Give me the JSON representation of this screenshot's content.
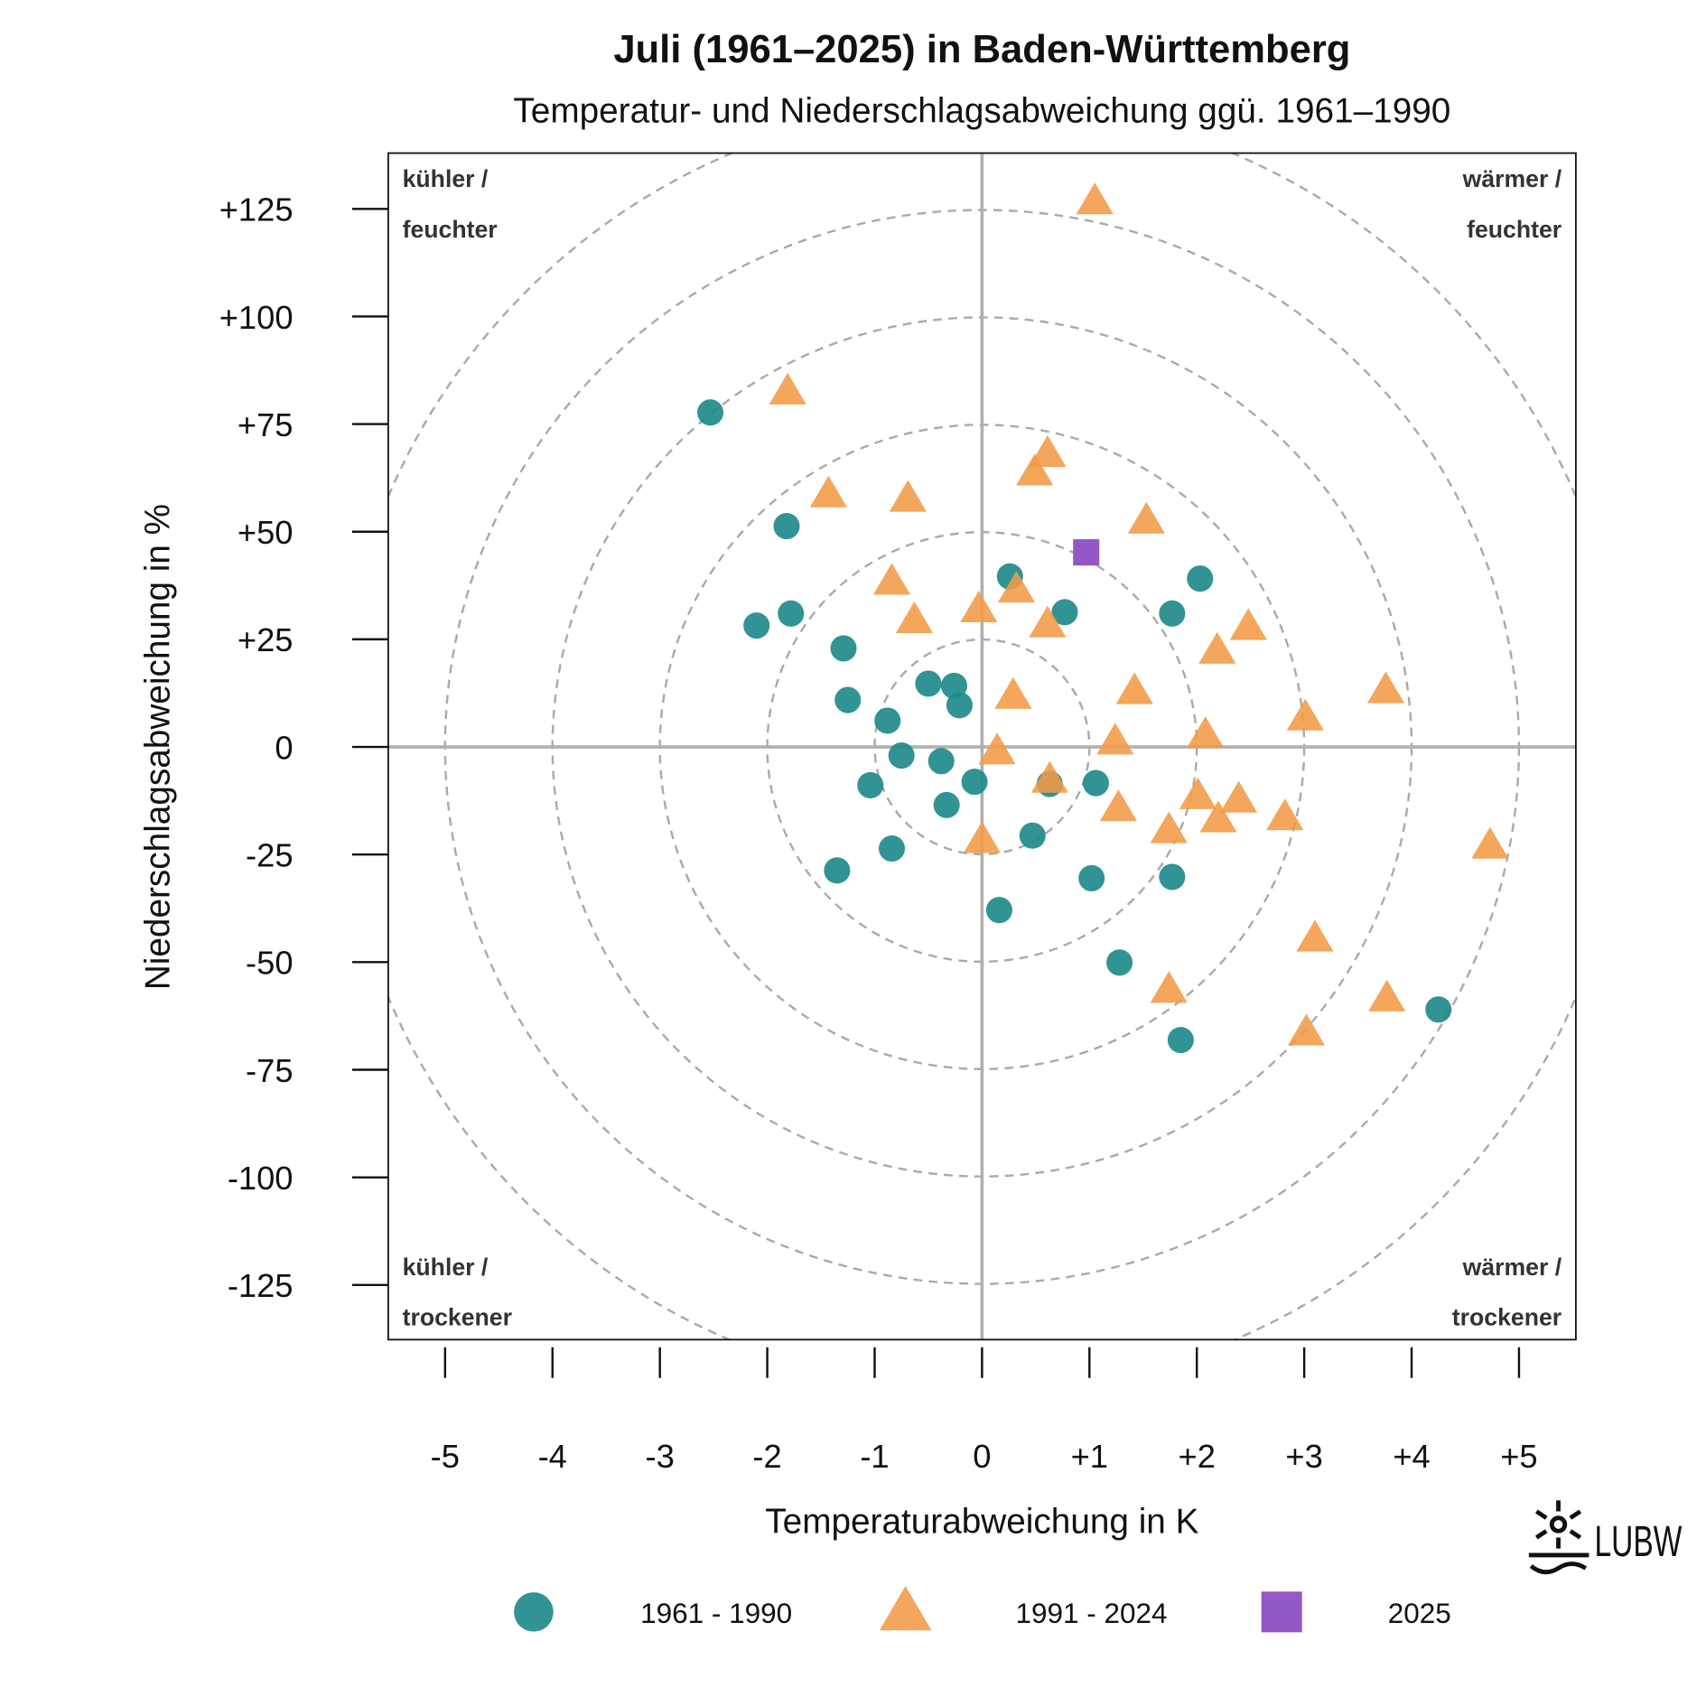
{
  "chart_data": {
    "type": "scatter",
    "title": "Juli (1961–2025) in Baden-Württemberg",
    "subtitle": "Temperatur- und Niederschlagsabweichung ggü. 1961–1990",
    "xlabel": "Temperaturabweichung in K",
    "ylabel": "Niederschlagsabweichung in %",
    "xlim": [
      -5.5,
      5.5
    ],
    "ylim": [
      -138,
      138
    ],
    "x_ticks": [
      -5,
      -4,
      -3,
      -2,
      -1,
      0,
      1,
      2,
      3,
      4,
      5
    ],
    "x_tick_labels": [
      "-5",
      "-4",
      "-3",
      "-2",
      "-1",
      "0",
      "+1",
      "+2",
      "+3",
      "+4",
      "+5"
    ],
    "y_ticks": [
      125,
      100,
      75,
      50,
      25,
      0,
      -25,
      -50,
      -75,
      -100,
      -125
    ],
    "y_tick_labels": [
      "+125",
      "+100",
      "+75",
      "+50",
      "+25",
      "0",
      "-25",
      "-50",
      "-75",
      "-100",
      "-125"
    ],
    "grid": "dashed concentric circles",
    "legend_position": "bottom",
    "quadrant_labels": {
      "top_left": [
        "kühler /",
        "feuchter"
      ],
      "top_right": [
        "wärmer /",
        "feuchter"
      ],
      "bottom_left": [
        "kühler /",
        "trockener"
      ],
      "bottom_right": [
        "wärmer /",
        "trockener"
      ]
    },
    "series": [
      {
        "name": "1961 - 1990",
        "marker": "circle",
        "color": "#1f8a8a",
        "points": [
          [
            -2.53,
            77.7
          ],
          [
            -1.82,
            51.3
          ],
          [
            -2.1,
            28.2
          ],
          [
            -1.78,
            31.0
          ],
          [
            -1.29,
            22.9
          ],
          [
            -1.25,
            10.9
          ],
          [
            -0.88,
            6.1
          ],
          [
            -0.5,
            14.7
          ],
          [
            -0.26,
            14.2
          ],
          [
            -0.21,
            9.7
          ],
          [
            -0.75,
            -2.0
          ],
          [
            -0.38,
            -3.3
          ],
          [
            -1.04,
            -8.9
          ],
          [
            -0.07,
            -8.1
          ],
          [
            -0.33,
            -13.5
          ],
          [
            -0.84,
            -23.6
          ],
          [
            -1.35,
            -28.7
          ],
          [
            0.26,
            39.6
          ],
          [
            0.77,
            31.3
          ],
          [
            0.63,
            -8.6
          ],
          [
            1.06,
            -8.4
          ],
          [
            0.47,
            -20.6
          ],
          [
            1.02,
            -30.5
          ],
          [
            0.16,
            -37.9
          ],
          [
            1.28,
            -50.1
          ],
          [
            1.77,
            -30.2
          ],
          [
            1.85,
            -68.1
          ],
          [
            1.77,
            31.0
          ],
          [
            2.03,
            39.1
          ],
          [
            4.25,
            -61.0
          ]
        ]
      },
      {
        "name": "1991 - 2024",
        "marker": "triangle",
        "color": "#f39a45",
        "points": [
          [
            1.05,
            126.8
          ],
          [
            -1.81,
            82.6
          ],
          [
            0.61,
            68.1
          ],
          [
            0.49,
            63.8
          ],
          [
            -1.43,
            58.7
          ],
          [
            -0.69,
            57.7
          ],
          [
            1.53,
            52.6
          ],
          [
            -0.84,
            38.4
          ],
          [
            0.32,
            36.6
          ],
          [
            -0.03,
            32.0
          ],
          [
            -0.63,
            29.5
          ],
          [
            0.61,
            28.5
          ],
          [
            2.19,
            22.4
          ],
          [
            2.48,
            27.9
          ],
          [
            1.42,
            13.0
          ],
          [
            0.29,
            11.9
          ],
          [
            3.76,
            13.2
          ],
          [
            3.01,
            6.9
          ],
          [
            2.08,
            2.8
          ],
          [
            1.24,
            1.3
          ],
          [
            0.14,
            -1.0
          ],
          [
            0.63,
            -7.6
          ],
          [
            1.27,
            -14.2
          ],
          [
            2.01,
            -11.4
          ],
          [
            2.39,
            -12.2
          ],
          [
            2.2,
            -16.8
          ],
          [
            1.74,
            -19.3
          ],
          [
            2.82,
            -16.3
          ],
          [
            0.0,
            -21.6
          ],
          [
            4.73,
            -22.9
          ],
          [
            3.1,
            -44.5
          ],
          [
            1.74,
            -56.4
          ],
          [
            3.77,
            -58.4
          ],
          [
            3.02,
            -66.3
          ]
        ]
      },
      {
        "name": "2025",
        "marker": "square",
        "color": "#9457c8",
        "points": [
          [
            0.97,
            45.2
          ]
        ]
      }
    ]
  },
  "logo": {
    "text": "LUBW"
  }
}
